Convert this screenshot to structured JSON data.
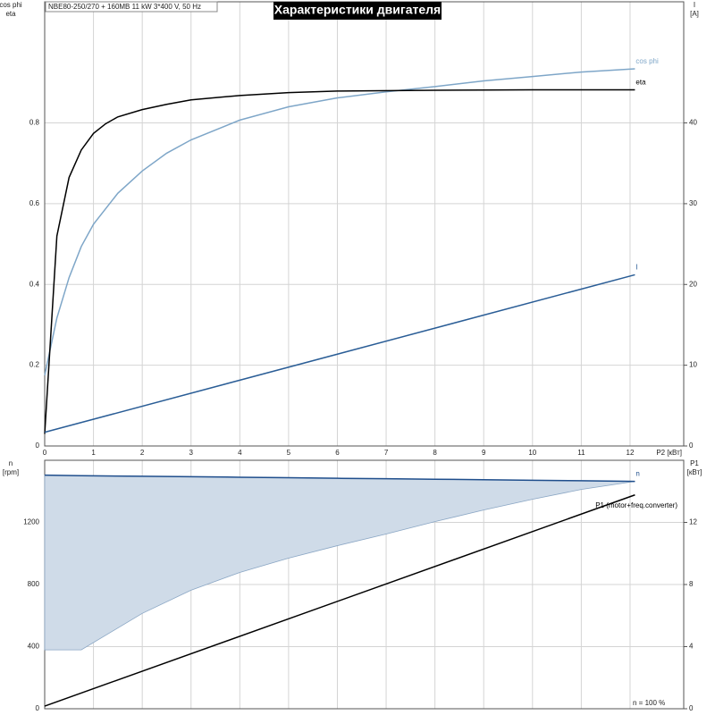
{
  "header": {
    "info": "NBE80-250/270 + 160MB   11 kW   3*400 V, 50 Hz",
    "title": "Характеристики двигателя"
  },
  "chart_data": [
    {
      "type": "line",
      "xlabel": "P2 [кВт]",
      "ylabel_lines": [
        "cos phi",
        "eta"
      ],
      "y2label_lines": [
        "I",
        "[A]"
      ],
      "xlim": [
        0,
        13.1
      ],
      "xticks": [
        0,
        1,
        2,
        3,
        4,
        5,
        6,
        7,
        8,
        9,
        10,
        11,
        12
      ],
      "ylim": [
        0,
        1.1
      ],
      "yticks": [
        0,
        0.2,
        0.4,
        0.6,
        0.8
      ],
      "y2lim": [
        0,
        55
      ],
      "y2ticks": [
        0,
        10,
        20,
        30,
        40
      ],
      "grid": true,
      "series": [
        {
          "name": "cos phi",
          "color": "#7ea6c8",
          "x": [
            0,
            0.25,
            0.5,
            0.75,
            1,
            1.5,
            2,
            2.5,
            3,
            4,
            5,
            6,
            7,
            8,
            9,
            10,
            11,
            12.1
          ],
          "values": [
            0.175,
            0.317,
            0.417,
            0.494,
            0.549,
            0.626,
            0.681,
            0.725,
            0.758,
            0.807,
            0.84,
            0.862,
            0.877,
            0.89,
            0.904,
            0.915,
            0.926,
            0.934
          ]
        },
        {
          "name": "eta",
          "color": "#000000",
          "x": [
            0,
            0.25,
            0.5,
            0.75,
            1,
            1.25,
            1.5,
            2,
            2.5,
            3,
            4,
            5,
            6,
            8,
            10,
            12.1
          ],
          "values": [
            0.03,
            0.52,
            0.665,
            0.733,
            0.774,
            0.798,
            0.815,
            0.833,
            0.846,
            0.857,
            0.868,
            0.875,
            0.879,
            0.881,
            0.882,
            0.882
          ]
        },
        {
          "name": "I",
          "color": "#2a5d96",
          "axis": "y2",
          "x": [
            0,
            12.1
          ],
          "values": [
            1.7,
            21.2
          ]
        }
      ]
    },
    {
      "type": "band",
      "ylabel_lines": [
        "n",
        "[rpm]"
      ],
      "y2label_lines": [
        "P1",
        "[кВт]"
      ],
      "annotation": "n = 100 %",
      "xlim": [
        0,
        13.1
      ],
      "xticks": [
        0,
        1,
        2,
        3,
        4,
        5,
        6,
        7,
        8,
        9,
        10,
        11,
        12
      ],
      "xtick_labels": false,
      "ylim": [
        0,
        1600
      ],
      "yticks": [
        0,
        400,
        800,
        1200
      ],
      "y2lim": [
        0,
        16
      ],
      "y2ticks": [
        0,
        4,
        8,
        12
      ],
      "grid": true,
      "series": [
        {
          "name": "n",
          "color": "#1f4e8c",
          "fill": "#cfdbe8",
          "x": [
            0,
            0.75,
            2,
            3,
            4,
            5,
            6,
            7,
            8,
            9,
            10,
            11,
            12.1
          ],
          "values": [
            1504,
            1501,
            1497,
            1494,
            1491,
            1488,
            1484,
            1481,
            1478,
            1475,
            1471,
            1468,
            1464
          ],
          "lower_values": [
            379,
            379,
            614,
            763,
            878,
            970,
            1050,
            1125,
            1205,
            1280,
            1349,
            1412,
            1464
          ]
        },
        {
          "name": "P1 (motor+freq.converter)",
          "color": "#000000",
          "axis": "y2",
          "x": [
            0,
            12.1
          ],
          "values": [
            0.17,
            13.77
          ]
        }
      ]
    }
  ]
}
